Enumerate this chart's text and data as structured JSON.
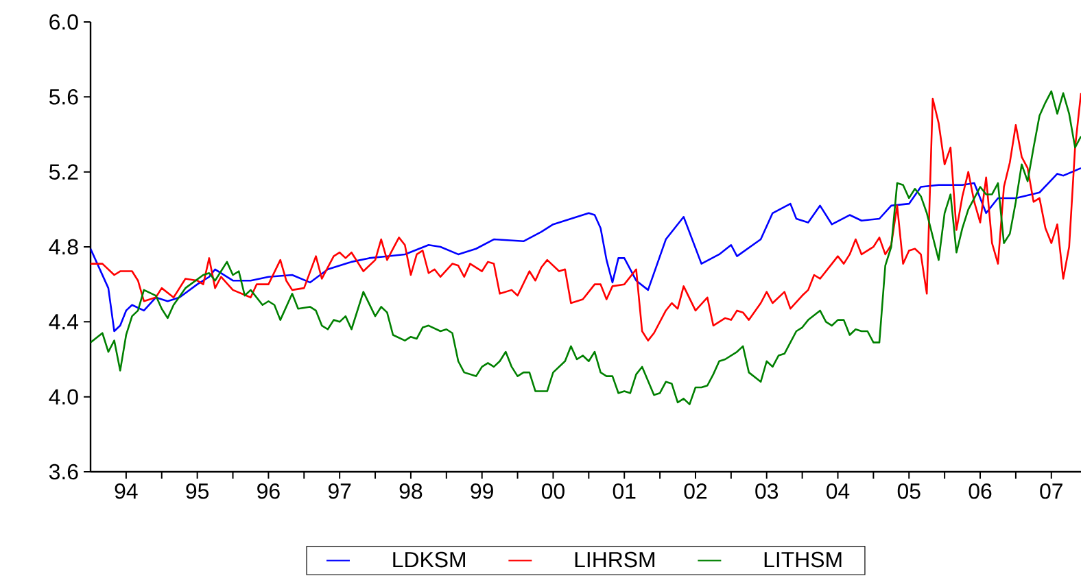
{
  "chart_data": {
    "type": "line",
    "xlim": [
      "1994-01",
      "2007-12"
    ],
    "ylim": [
      3.6,
      6.0
    ],
    "yticks": [
      {
        "value": 3.6,
        "label": "3.6"
      },
      {
        "value": 4.0,
        "label": "4.0"
      },
      {
        "value": 4.4,
        "label": "4.4"
      },
      {
        "value": 4.8,
        "label": "4.8"
      },
      {
        "value": 5.2,
        "label": "5.2"
      },
      {
        "value": 5.6,
        "label": "5.6"
      },
      {
        "value": 6.0,
        "label": "6.0"
      }
    ],
    "xticks": [
      {
        "value": "1994-07",
        "label": "94"
      },
      {
        "value": "1995-01",
        "label": null
      },
      {
        "value": "1995-07",
        "label": "95"
      },
      {
        "value": "1996-01",
        "label": null
      },
      {
        "value": "1996-07",
        "label": "96"
      },
      {
        "value": "1997-01",
        "label": null
      },
      {
        "value": "1997-07",
        "label": "97"
      },
      {
        "value": "1998-01",
        "label": null
      },
      {
        "value": "1998-07",
        "label": "98"
      },
      {
        "value": "1999-01",
        "label": null
      },
      {
        "value": "1999-07",
        "label": "99"
      },
      {
        "value": "2000-01",
        "label": null
      },
      {
        "value": "2000-07",
        "label": "00"
      },
      {
        "value": "2001-01",
        "label": null
      },
      {
        "value": "2001-07",
        "label": "01"
      },
      {
        "value": "2002-01",
        "label": null
      },
      {
        "value": "2002-07",
        "label": "02"
      },
      {
        "value": "2003-01",
        "label": null
      },
      {
        "value": "2003-07",
        "label": "03"
      },
      {
        "value": "2004-01",
        "label": null
      },
      {
        "value": "2004-07",
        "label": "04"
      },
      {
        "value": "2005-01",
        "label": null
      },
      {
        "value": "2005-07",
        "label": "05"
      },
      {
        "value": "2006-01",
        "label": null
      },
      {
        "value": "2006-07",
        "label": "06"
      },
      {
        "value": "2007-01",
        "label": null
      },
      {
        "value": "2007-07",
        "label": "07"
      }
    ],
    "legend": "bottom",
    "marker": "none",
    "line_style": "solid",
    "series": [
      {
        "name": "LDKSM",
        "color": "#0000ff",
        "x": [
          "1994-01",
          "1994-04",
          "1994-05",
          "1994-06",
          "1994-07",
          "1994-08",
          "1994-10",
          "1994-12",
          "1995-02",
          "1995-04",
          "1995-07",
          "1995-09",
          "1995-10",
          "1996-01",
          "1996-04",
          "1996-07",
          "1996-11",
          "1997-02",
          "1997-05",
          "1997-09",
          "1997-12",
          "1998-03",
          "1998-06",
          "1998-10",
          "1998-12",
          "1999-03",
          "1999-06",
          "1999-09",
          "2000-02",
          "2000-05",
          "2000-07",
          "2000-10",
          "2001-01",
          "2001-02",
          "2001-03",
          "2001-04",
          "2001-05",
          "2001-06",
          "2001-07",
          "2001-09",
          "2001-11",
          "2002-02",
          "2002-05",
          "2002-08",
          "2002-11",
          "2003-01",
          "2003-02",
          "2003-06",
          "2003-08",
          "2003-11",
          "2003-12",
          "2004-02",
          "2004-04",
          "2004-06",
          "2004-09",
          "2004-11",
          "2005-02",
          "2005-04",
          "2005-07",
          "2005-09",
          "2005-12",
          "2006-04",
          "2006-06",
          "2006-08",
          "2006-10",
          "2007-01",
          "2007-05",
          "2007-08",
          "2007-09",
          "2007-12"
        ],
        "values": [
          4.79,
          4.58,
          4.35,
          4.38,
          4.46,
          4.49,
          4.46,
          4.53,
          4.51,
          4.53,
          4.6,
          4.64,
          4.68,
          4.62,
          4.62,
          4.64,
          4.65,
          4.61,
          4.68,
          4.72,
          4.74,
          4.75,
          4.76,
          4.81,
          4.8,
          4.76,
          4.79,
          4.84,
          4.83,
          4.88,
          4.92,
          4.95,
          4.98,
          4.97,
          4.9,
          4.73,
          4.61,
          4.74,
          4.74,
          4.62,
          4.57,
          4.84,
          4.96,
          4.71,
          4.76,
          4.81,
          4.75,
          4.84,
          4.98,
          5.03,
          4.95,
          4.93,
          5.02,
          4.92,
          4.97,
          4.94,
          4.95,
          5.02,
          5.03,
          5.12,
          5.13,
          5.13,
          5.14,
          4.98,
          5.06,
          5.06,
          5.09,
          5.19,
          5.18,
          5.22
        ]
      },
      {
        "name": "LIHRSM",
        "color": "#ff0000",
        "x": [
          "1994-01",
          "1994-03",
          "1994-05",
          "1994-06",
          "1994-08",
          "1994-09",
          "1994-10",
          "1994-12",
          "1995-01",
          "1995-03",
          "1995-05",
          "1995-07",
          "1995-08",
          "1995-09",
          "1995-10",
          "1995-11",
          "1996-01",
          "1996-04",
          "1996-05",
          "1996-07",
          "1996-09",
          "1996-10",
          "1996-11",
          "1997-01",
          "1997-03",
          "1997-04",
          "1997-06",
          "1997-07",
          "1997-08",
          "1997-09",
          "1997-11",
          "1998-01",
          "1998-02",
          "1998-03",
          "1998-05",
          "1998-06",
          "1998-07",
          "1998-08",
          "1998-09",
          "1998-10",
          "1998-11",
          "1998-12",
          "1999-02",
          "1999-03",
          "1999-04",
          "1999-05",
          "1999-07",
          "1999-08",
          "1999-09",
          "1999-10",
          "1999-12",
          "2000-01",
          "2000-03",
          "2000-04",
          "2000-05",
          "2000-06",
          "2000-08",
          "2000-09",
          "2000-10",
          "2000-12",
          "2001-01",
          "2001-02",
          "2001-03",
          "2001-04",
          "2001-05",
          "2001-07",
          "2001-09",
          "2001-10",
          "2001-11",
          "2001-12",
          "2002-02",
          "2002-03",
          "2002-04",
          "2002-05",
          "2002-07",
          "2002-09",
          "2002-10",
          "2002-12",
          "2003-01",
          "2003-02",
          "2003-03",
          "2003-04",
          "2003-06",
          "2003-07",
          "2003-08",
          "2003-10",
          "2003-11",
          "2004-01",
          "2004-02",
          "2004-03",
          "2004-04",
          "2004-06",
          "2004-07",
          "2004-08",
          "2004-09",
          "2004-10",
          "2004-11",
          "2005-01",
          "2005-02",
          "2005-03",
          "2005-04",
          "2005-05",
          "2005-06",
          "2005-07",
          "2005-08",
          "2005-09",
          "2005-10",
          "2005-11",
          "2005-12",
          "2006-01",
          "2006-02",
          "2006-03",
          "2006-04",
          "2006-05",
          "2006-06",
          "2006-07",
          "2006-08",
          "2006-09",
          "2006-10",
          "2006-11",
          "2006-12",
          "2007-01",
          "2007-02",
          "2007-03",
          "2007-04",
          "2007-05",
          "2007-06",
          "2007-07",
          "2007-08",
          "2007-09",
          "2007-10",
          "2007-11",
          "2007-12"
        ],
        "values": [
          4.71,
          4.71,
          4.65,
          4.67,
          4.67,
          4.62,
          4.51,
          4.53,
          4.58,
          4.53,
          4.63,
          4.62,
          4.6,
          4.74,
          4.58,
          4.64,
          4.57,
          4.53,
          4.6,
          4.6,
          4.73,
          4.62,
          4.57,
          4.58,
          4.75,
          4.63,
          4.75,
          4.77,
          4.74,
          4.77,
          4.67,
          4.73,
          4.84,
          4.73,
          4.85,
          4.81,
          4.65,
          4.76,
          4.78,
          4.66,
          4.68,
          4.64,
          4.71,
          4.7,
          4.64,
          4.71,
          4.67,
          4.72,
          4.71,
          4.55,
          4.57,
          4.54,
          4.67,
          4.62,
          4.69,
          4.73,
          4.67,
          4.68,
          4.5,
          4.52,
          4.56,
          4.6,
          4.6,
          4.52,
          4.59,
          4.6,
          4.68,
          4.35,
          4.3,
          4.34,
          4.46,
          4.5,
          4.47,
          4.59,
          4.46,
          4.53,
          4.38,
          4.42,
          4.41,
          4.46,
          4.45,
          4.41,
          4.5,
          4.56,
          4.5,
          4.56,
          4.47,
          4.54,
          4.57,
          4.65,
          4.63,
          4.71,
          4.75,
          4.71,
          4.76,
          4.84,
          4.76,
          4.8,
          4.85,
          4.76,
          4.81,
          5.02,
          4.71,
          4.78,
          4.79,
          4.76,
          4.55,
          5.59,
          5.46,
          5.24,
          5.33,
          4.89,
          5.07,
          5.2,
          5.04,
          4.93,
          5.17,
          4.82,
          4.71,
          5.12,
          5.25,
          5.45,
          5.28,
          5.22,
          5.04,
          5.06,
          4.9,
          4.82,
          4.92,
          4.63,
          4.8,
          5.33,
          5.62
        ]
      },
      {
        "name": "LITHSM",
        "color": "#008000",
        "x": [
          "1994-01",
          "1994-03",
          "1994-04",
          "1994-05",
          "1994-06",
          "1994-07",
          "1994-08",
          "1994-09",
          "1994-10",
          "1994-12",
          "1995-01",
          "1995-02",
          "1995-03",
          "1995-05",
          "1995-08",
          "1995-09",
          "1995-10",
          "1995-12",
          "1996-01",
          "1996-02",
          "1996-03",
          "1996-04",
          "1996-06",
          "1996-07",
          "1996-08",
          "1996-09",
          "1996-11",
          "1996-12",
          "1997-02",
          "1997-03",
          "1997-04",
          "1997-05",
          "1997-06",
          "1997-07",
          "1997-08",
          "1997-09",
          "1997-11",
          "1998-01",
          "1998-02",
          "1998-03",
          "1998-04",
          "1998-06",
          "1998-07",
          "1998-08",
          "1998-09",
          "1998-10",
          "1998-12",
          "1999-01",
          "1999-02",
          "1999-03",
          "1999-04",
          "1999-06",
          "1999-07",
          "1999-08",
          "1999-09",
          "1999-10",
          "1999-11",
          "1999-12",
          "2000-01",
          "2000-02",
          "2000-03",
          "2000-04",
          "2000-06",
          "2000-07",
          "2000-09",
          "2000-10",
          "2000-11",
          "2000-12",
          "2001-01",
          "2001-02",
          "2001-03",
          "2001-04",
          "2001-05",
          "2001-06",
          "2001-07",
          "2001-08",
          "2001-09",
          "2001-10",
          "2001-12",
          "2002-01",
          "2002-02",
          "2002-03",
          "2002-04",
          "2002-05",
          "2002-06",
          "2002-07",
          "2002-08",
          "2002-09",
          "2002-10",
          "2002-11",
          "2002-12",
          "2003-02",
          "2003-03",
          "2003-04",
          "2003-06",
          "2003-07",
          "2003-08",
          "2003-09",
          "2003-10",
          "2003-11",
          "2003-12",
          "2004-01",
          "2004-02",
          "2004-04",
          "2004-05",
          "2004-06",
          "2004-07",
          "2004-08",
          "2004-09",
          "2004-10",
          "2004-11",
          "2004-12",
          "2005-01",
          "2005-02",
          "2005-03",
          "2005-04",
          "2005-05",
          "2005-06",
          "2005-07",
          "2005-08",
          "2005-09",
          "2005-10",
          "2005-12",
          "2006-01",
          "2006-02",
          "2006-03",
          "2006-04",
          "2006-05",
          "2006-07",
          "2006-08",
          "2006-09",
          "2006-10",
          "2006-11",
          "2006-12",
          "2007-01",
          "2007-02",
          "2007-03",
          "2007-04",
          "2007-05",
          "2007-06",
          "2007-07",
          "2007-08",
          "2007-09",
          "2007-10",
          "2007-11",
          "2007-12"
        ],
        "values": [
          4.29,
          4.34,
          4.24,
          4.3,
          4.14,
          4.33,
          4.43,
          4.46,
          4.57,
          4.54,
          4.47,
          4.42,
          4.49,
          4.58,
          4.65,
          4.66,
          4.62,
          4.72,
          4.65,
          4.67,
          4.54,
          4.57,
          4.49,
          4.51,
          4.49,
          4.41,
          4.55,
          4.47,
          4.48,
          4.46,
          4.38,
          4.36,
          4.41,
          4.4,
          4.43,
          4.36,
          4.56,
          4.43,
          4.48,
          4.45,
          4.33,
          4.3,
          4.32,
          4.31,
          4.37,
          4.38,
          4.35,
          4.36,
          4.34,
          4.19,
          4.13,
          4.11,
          4.16,
          4.18,
          4.16,
          4.19,
          4.24,
          4.16,
          4.11,
          4.13,
          4.13,
          4.03,
          4.03,
          4.13,
          4.19,
          4.27,
          4.2,
          4.22,
          4.19,
          4.24,
          4.13,
          4.11,
          4.11,
          4.02,
          4.03,
          4.02,
          4.12,
          4.16,
          4.01,
          4.02,
          4.08,
          4.07,
          3.97,
          3.99,
          3.96,
          4.05,
          4.05,
          4.06,
          4.12,
          4.19,
          4.2,
          4.24,
          4.27,
          4.13,
          4.08,
          4.19,
          4.16,
          4.22,
          4.23,
          4.29,
          4.35,
          4.37,
          4.41,
          4.46,
          4.4,
          4.38,
          4.41,
          4.41,
          4.33,
          4.36,
          4.35,
          4.35,
          4.29,
          4.29,
          4.7,
          4.8,
          5.14,
          5.13,
          5.06,
          5.11,
          5.07,
          4.98,
          4.73,
          4.98,
          5.08,
          4.77,
          4.9,
          5.0,
          5.12,
          5.08,
          5.08,
          5.14,
          4.82,
          4.87,
          5.04,
          5.24,
          5.15,
          5.33,
          5.5,
          5.57,
          5.63,
          5.51,
          5.62,
          5.51,
          5.33,
          5.39
        ]
      }
    ]
  }
}
